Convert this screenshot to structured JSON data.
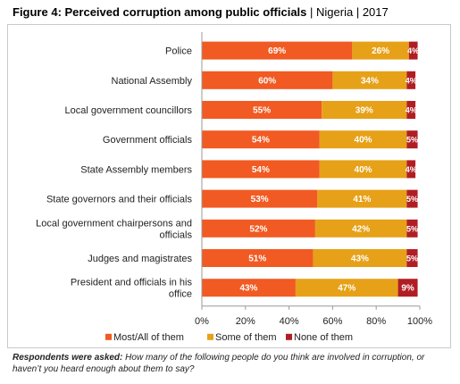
{
  "title": {
    "main": "Figure 4: Perceived corruption among public officials",
    "sep1": " | ",
    "country": "Nigeria",
    "sep2": " | ",
    "year": "2017"
  },
  "note": {
    "label": "Respondents were asked:",
    "text": "How many of the following people do you think are involved in corruption, or haven’t you heard enough about them to say?"
  },
  "colors": {
    "most": "#f15a22",
    "some": "#e6a118",
    "none": "#b01e23",
    "axis": "#999999"
  },
  "chart_data": {
    "type": "bar",
    "orientation": "horizontal",
    "stacked": true,
    "categories": [
      "Police",
      "National Assembly",
      "Local government councillors",
      "Government officials",
      "State Assembly members",
      "State governors and their officials",
      "Local government chairpersons and officials",
      "Judges and magistrates",
      "President and officials in his office"
    ],
    "series": [
      {
        "name": "Most/All of them",
        "values": [
          69,
          60,
          55,
          54,
          54,
          53,
          52,
          51,
          43
        ],
        "labels": [
          "69%",
          "60%",
          "55%",
          "54%",
          "54%",
          "53%",
          "52%",
          "51%",
          "43%"
        ]
      },
      {
        "name": "Some of them",
        "values": [
          26,
          34,
          39,
          40,
          40,
          41,
          42,
          43,
          47
        ],
        "labels": [
          "26%",
          "34%",
          "39%",
          "40%",
          "40%",
          "41%",
          "42%",
          "43%",
          "47%"
        ]
      },
      {
        "name": "None of them",
        "values": [
          4,
          4,
          4,
          5,
          4,
          5,
          5,
          5,
          9
        ],
        "labels": [
          "4%",
          "4%",
          "4%",
          "5%",
          "4%",
          "5%",
          "5%",
          "5%",
          "9%"
        ]
      }
    ],
    "xlim": [
      0,
      100
    ],
    "xticks": [
      0,
      20,
      40,
      60,
      80,
      100
    ],
    "xtick_labels": [
      "0%",
      "20%",
      "40%",
      "60%",
      "80%",
      "100%"
    ],
    "legend_position": "bottom",
    "grid": false
  }
}
